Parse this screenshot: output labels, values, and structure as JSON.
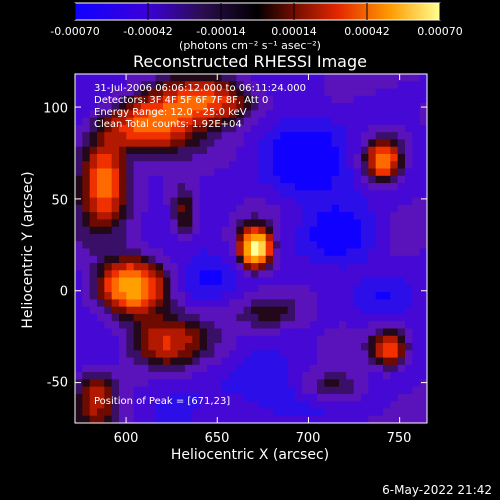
{
  "app": {
    "title": "Reconstructed RHESSI Image",
    "footer_date": "6-May-2022 21:42"
  },
  "colorbar": {
    "unit_label": "(photons cm⁻² s⁻¹ asec⁻²)",
    "ticks": [
      "-0.00070",
      "-0.00042",
      "-0.00014",
      "0.00014",
      "0.00042",
      "0.00070"
    ]
  },
  "annotation": {
    "time_range": "31-Jul-2006 06:06:12.000 to 06:11:24.000",
    "detectors": "Detectors: 3F 4F 5F 6F 7F 8F, Att 0",
    "energy_range": "Energy Range: 12.0 - 25.0 keV",
    "clean_line": "Clean    Total counts: 1.92E+04",
    "peak_position": "Position of Peak = [671,23]"
  },
  "axes": {
    "x_label": "Heliocentric X (arcsec)",
    "y_label": "Heliocentric Y (arcsec)",
    "x_ticks": [
      "600",
      "650",
      "700",
      "750"
    ],
    "y_ticks": [
      "100",
      "50",
      "0",
      "-50"
    ]
  },
  "colors": {
    "negative_low": "#2010ff",
    "negative_mid": "#4d0cff",
    "neutral_dark": "#2a0e4d",
    "positive_mid": "#ff3300",
    "positive_high": "#ff8a00",
    "positive_max": "#ffff88"
  },
  "chart_data": {
    "type": "heatmap",
    "title": "Reconstructed RHESSI Image",
    "xlabel": "Heliocentric X (arcsec)",
    "ylabel": "Heliocentric Y (arcsec)",
    "x_range": [
      572,
      765
    ],
    "y_range": [
      -72,
      118
    ],
    "x_ticks": [
      600,
      650,
      700,
      750
    ],
    "y_ticks": [
      -50,
      0,
      50,
      100
    ],
    "colorbar_range": [
      -0.0007,
      0.0007
    ],
    "colorbar_ticks": [
      -0.0007,
      -0.00042,
      -0.00014,
      0.00014,
      0.00042,
      0.0007
    ],
    "peak_position": [
      671,
      23
    ],
    "grid": false,
    "legend_placement": "top"
  }
}
